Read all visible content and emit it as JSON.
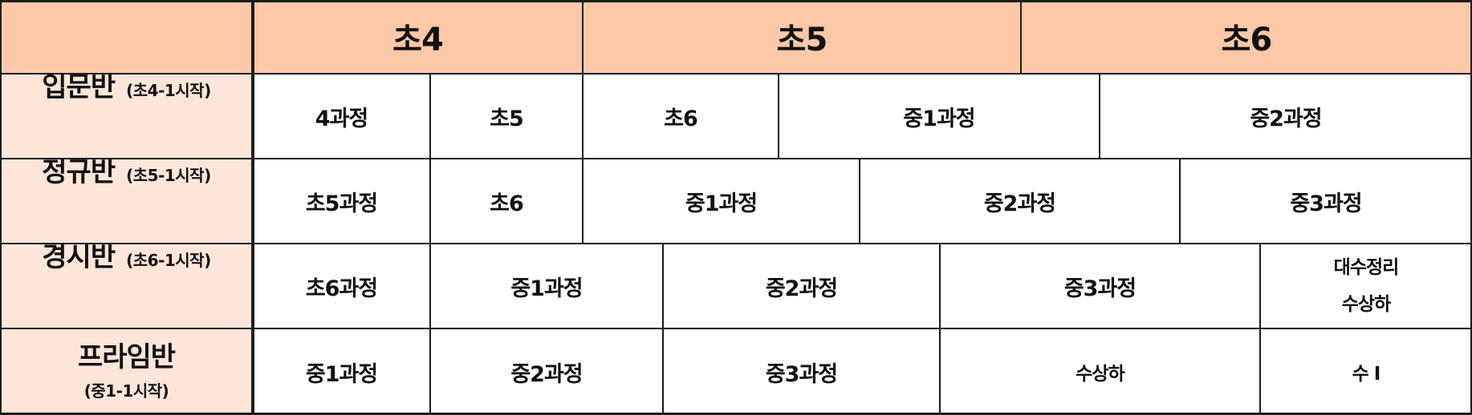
{
  "header": {
    "corner": "",
    "grades": [
      "초4",
      "초5",
      "초6"
    ]
  },
  "rows": [
    {
      "name": "입문반",
      "start": "(초4-1시작)",
      "cells": [
        "4과정",
        "초5",
        "초6",
        "중1과정",
        "중2과정"
      ]
    },
    {
      "name": "정규반",
      "start": "(초5-1시작)",
      "cells": [
        "초5과정",
        "초6",
        "중1과정",
        "중2과정",
        "중3과정"
      ]
    },
    {
      "name": "경시반",
      "start": "(초6-1시작)",
      "cells": [
        "초6과정",
        "중1과정",
        "중2과정",
        "중3과정",
        [
          "대수정리",
          "수상하"
        ]
      ]
    },
    {
      "name": "프라임반",
      "start": "(중1-1시작)",
      "cells": [
        "중1과정",
        "중2과정",
        "중3과정",
        "수상하",
        "수 I"
      ]
    }
  ],
  "colors": {
    "header_fill": "#fdc8a7",
    "side_fill": "#fde6d8",
    "line": "#1c1c1c"
  }
}
